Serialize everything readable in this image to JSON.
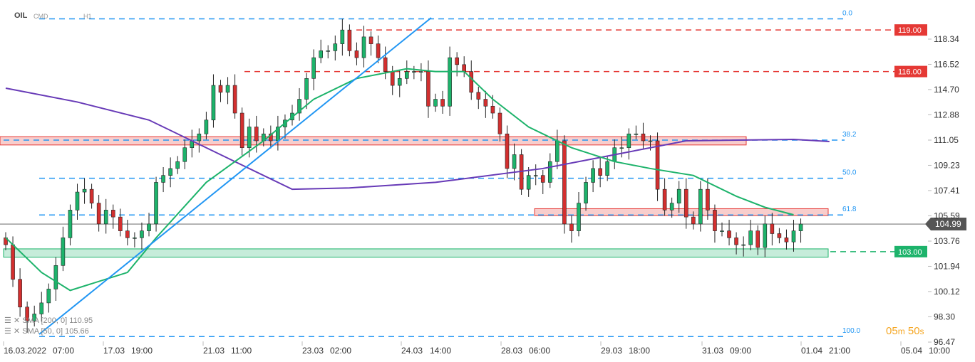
{
  "header": {
    "symbol": "OIL",
    "type": "CMD",
    "timeframe": "H1"
  },
  "timer": {
    "minutes": "05",
    "m": "m",
    "seconds": "50",
    "s": "s"
  },
  "legend": [
    {
      "label": "SMA [200, 0] 110.95",
      "color": "#673ab7"
    },
    {
      "label": "SMA [50, 0] 105.66",
      "color": "#1db36b"
    }
  ],
  "chart_data": {
    "type": "candlestick",
    "price_axis": {
      "ticks": [
        "118.34",
        "116.52",
        "114.70",
        "112.88",
        "111.05",
        "109.23",
        "107.41",
        "105.59",
        "103.76",
        "101.94",
        "100.12",
        "98.30",
        "96.47"
      ],
      "range": [
        96.47,
        119.8
      ]
    },
    "time_axis": [
      "16.03.2022",
      "07:00",
      "17.03",
      "19:00",
      "21.03",
      "11:00",
      "23.03",
      "02:00",
      "24.03",
      "14:00",
      "28.03",
      "06:00",
      "29.03",
      "18:00",
      "31.03",
      "09:00",
      "01.04",
      "21:00",
      "05.04",
      "10:00"
    ],
    "closes": [
      103.5,
      101,
      99,
      98,
      98.5,
      99.3,
      100.3,
      102,
      104,
      106,
      107.3,
      107.5,
      106.5,
      105,
      106,
      105.5,
      104.5,
      104,
      104,
      104.5,
      105,
      108,
      108.5,
      109,
      109.5,
      110.5,
      111,
      111.5,
      112.5,
      115,
      114.5,
      115,
      113,
      110.5,
      112,
      111,
      111.5,
      111,
      112,
      112.5,
      113,
      114,
      115.5,
      117,
      117.5,
      117.5,
      118,
      119,
      117.5,
      117,
      118.5,
      118,
      117,
      116,
      115,
      115.5,
      116,
      116,
      116,
      113.5,
      114,
      113.5,
      117,
      116.5,
      116,
      114.5,
      114,
      113.5,
      113,
      111.5,
      109,
      110,
      107.5,
      108.5,
      108.5,
      108,
      109.5,
      111,
      105,
      104.5,
      106.5,
      108,
      109,
      108.5,
      109.5,
      110.5,
      110.5,
      111.5,
      111.5,
      111,
      111,
      107.5,
      106,
      106.5,
      107.5,
      105.5,
      105,
      107.5,
      106,
      104.5,
      104.5,
      104,
      103.5,
      103.5,
      104.5,
      103.3,
      105,
      104.3,
      104,
      103.7,
      104.5,
      104.99
    ],
    "sma200": [
      [
        0,
        114.8
      ],
      [
        10,
        113.8
      ],
      [
        20,
        112.5
      ],
      [
        30,
        110
      ],
      [
        40,
        107.5
      ],
      [
        48,
        107.6
      ],
      [
        60,
        108
      ],
      [
        75,
        109
      ],
      [
        85,
        110
      ],
      [
        95,
        111
      ],
      [
        110,
        111.1
      ],
      [
        115,
        110.95
      ]
    ],
    "sma50": [
      [
        0,
        104
      ],
      [
        5,
        101.5
      ],
      [
        9,
        100.2
      ],
      [
        17,
        101.5
      ],
      [
        21,
        104
      ],
      [
        28,
        108
      ],
      [
        36,
        111
      ],
      [
        43,
        114
      ],
      [
        49,
        115.5
      ],
      [
        56,
        116.2
      ],
      [
        60,
        116
      ],
      [
        64,
        116
      ],
      [
        68,
        114
      ],
      [
        73,
        112
      ],
      [
        79,
        110.5
      ],
      [
        85,
        109.5
      ],
      [
        90,
        109
      ],
      [
        96,
        108.5
      ],
      [
        102,
        107
      ],
      [
        106,
        106.2
      ],
      [
        110,
        105.66
      ]
    ],
    "current_price": "104.99",
    "levels": [
      {
        "label": "119.00",
        "value": 119.0,
        "color": "#e53935"
      },
      {
        "label": "116.00",
        "value": 116.0,
        "color": "#e53935"
      },
      {
        "label": "103.00",
        "value": 103.0,
        "color": "#1db36b"
      }
    ],
    "fibonacci": [
      {
        "label": "0.0",
        "value": 119.8
      },
      {
        "label": "38.2",
        "value": 111.05
      },
      {
        "label": "50.0",
        "value": 108.3
      },
      {
        "label": "61.8",
        "value": 105.65
      },
      {
        "label": "100.0",
        "value": 96.87
      }
    ],
    "zones": [
      {
        "from": 110.7,
        "to": 111.3,
        "color": "#e53935"
      },
      {
        "from": 105.6,
        "to": 106.1,
        "color": "#e53935"
      },
      {
        "from": 102.6,
        "to": 103.2,
        "color": "#1db36b"
      }
    ]
  }
}
